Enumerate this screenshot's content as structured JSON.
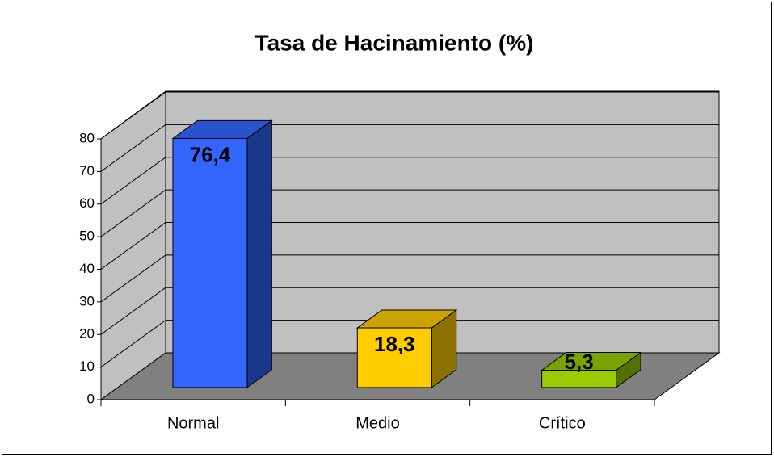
{
  "chart_data": {
    "type": "bar",
    "title": "Tasa de Hacinamiento (%)",
    "categories": [
      "Normal",
      "Medio",
      "Crítico"
    ],
    "values": [
      76.4,
      18.3,
      5.3
    ],
    "value_labels": [
      "76,4",
      "18,3",
      "5,3"
    ],
    "colors": [
      "#3366ff",
      "#ffcc00",
      "#99cc00"
    ],
    "ylim": [
      0,
      80
    ],
    "yticks": [
      0,
      10,
      20,
      30,
      40,
      50,
      60,
      70,
      80
    ],
    "grid": true
  }
}
